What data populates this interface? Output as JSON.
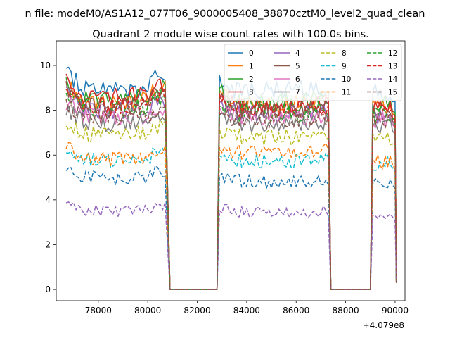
{
  "figure": {
    "suptitle": "n file: modeM0/AS1A12_077T06_9000005408_38870cztM0_level2_quad_clean",
    "title": "Quadrant 2 module wise count rates with 100.0s bins.",
    "offset_label": "+4.079e8"
  },
  "chart_data": {
    "type": "line",
    "title": "Quadrant 2 module wise count rates with 100.0s bins.",
    "xlabel": "",
    "ylabel": "",
    "x_offset": 407900000,
    "x_unit_note": "x values below are the tick-label values; true x = value + 4.079e8",
    "xlim": [
      76300,
      90400
    ],
    "ylim": [
      -0.5,
      11.1
    ],
    "xticks": [
      78000,
      80000,
      82000,
      84000,
      86000,
      88000,
      90000
    ],
    "xtick_labels": [
      "78000",
      "80000",
      "82000",
      "84000",
      "86000",
      "88000",
      "90000"
    ],
    "yticks": [
      0,
      2,
      4,
      6,
      8,
      10
    ],
    "ytick_labels": [
      "0",
      "2",
      "4",
      "6",
      "8",
      "10"
    ],
    "grid": false,
    "legend_placement": "top-right",
    "legend_columns": 4,
    "segments": [
      {
        "start": 76700,
        "end": 80700,
        "step": 100
      },
      {
        "start": 82900,
        "end": 87300,
        "step": 100
      },
      {
        "start": 89100,
        "end": 90000,
        "step": 100
      }
    ],
    "gaps": [
      [
        80700,
        81000,
        82800,
        82900
      ],
      [
        87300,
        87400,
        89000,
        89100
      ],
      [
        90000,
        90100
      ]
    ],
    "series": [
      {
        "name": "0",
        "level": 9.2,
        "segment_levels": [
          9.2,
          9.0,
          8.8
        ],
        "color": "#1f77b4",
        "dash": "solid"
      },
      {
        "name": "1",
        "level": 8.6,
        "segment_levels": [
          8.6,
          8.4,
          8.2
        ],
        "color": "#ff7f0e",
        "dash": "solid"
      },
      {
        "name": "2",
        "level": 8.7,
        "segment_levels": [
          8.7,
          8.5,
          8.3
        ],
        "color": "#2ca02c",
        "dash": "solid"
      },
      {
        "name": "3",
        "level": 8.8,
        "segment_levels": [
          8.8,
          8.3,
          8.0
        ],
        "color": "#d62728",
        "dash": "solid"
      },
      {
        "name": "4",
        "level": 8.2,
        "segment_levels": [
          8.2,
          8.0,
          7.8
        ],
        "color": "#9467bd",
        "dash": "solid"
      },
      {
        "name": "5",
        "level": 8.4,
        "segment_levels": [
          8.4,
          8.1,
          7.9
        ],
        "color": "#8c564b",
        "dash": "solid"
      },
      {
        "name": "6",
        "level": 7.9,
        "segment_levels": [
          7.9,
          7.8,
          7.6
        ],
        "color": "#e377c2",
        "dash": "solid"
      },
      {
        "name": "7",
        "level": 7.6,
        "segment_levels": [
          7.6,
          7.5,
          7.3
        ],
        "color": "#7f7f7f",
        "dash": "solid"
      },
      {
        "name": "8",
        "level": 7.1,
        "segment_levels": [
          7.1,
          6.9,
          6.7
        ],
        "color": "#bcbd22",
        "dash": "dashed"
      },
      {
        "name": "9",
        "level": 5.9,
        "segment_levels": [
          5.9,
          5.8,
          5.6
        ],
        "color": "#17becf",
        "dash": "dashed"
      },
      {
        "name": "10",
        "level": 5.1,
        "segment_levels": [
          5.1,
          4.9,
          4.8
        ],
        "color": "#1f77b4",
        "dash": "dashed"
      },
      {
        "name": "11",
        "level": 6.0,
        "segment_levels": [
          6.0,
          6.2,
          5.7
        ],
        "color": "#ff7f0e",
        "dash": "dashed"
      },
      {
        "name": "12",
        "level": 8.3,
        "segment_levels": [
          8.3,
          8.0,
          7.8
        ],
        "color": "#2ca02c",
        "dash": "dashed"
      },
      {
        "name": "13",
        "level": 8.4,
        "segment_levels": [
          8.4,
          8.2,
          8.1
        ],
        "color": "#d62728",
        "dash": "dashed"
      },
      {
        "name": "14",
        "level": 3.6,
        "segment_levels": [
          3.6,
          3.5,
          3.3
        ],
        "color": "#9467bd",
        "dash": "dashed"
      },
      {
        "name": "15",
        "level": 7.9,
        "segment_levels": [
          7.9,
          7.7,
          7.6
        ],
        "color": "#8c564b",
        "dash": "dashed"
      }
    ]
  }
}
